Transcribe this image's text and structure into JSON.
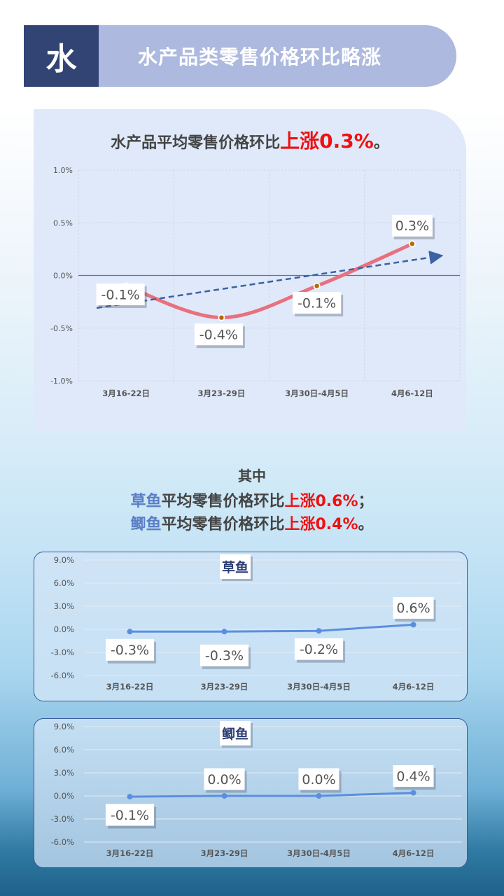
{
  "header": {
    "badge": "水",
    "title": "水产品类零售价格环比略涨"
  },
  "main_chart": {
    "title_prefix": "水产品平均零售价格环比",
    "title_highlight": "上涨0.3%",
    "title_suffix": "。"
  },
  "summary": {
    "line1": "其中",
    "line2_fish": "草鱼",
    "line2_text": "平均零售价格环比",
    "line2_highlight": "上涨0.6%",
    "line2_end": "；",
    "line3_fish": "鲫鱼",
    "line3_text": "平均零售价格环比",
    "line3_highlight": "上涨0.4%",
    "line3_end": "。"
  },
  "colors": {
    "badge": "#314474",
    "header_bar": "#adb9de",
    "main_line": "#e8707f",
    "trend_line": "#3a62a4",
    "fish_line": "#5b8fde",
    "highlight_red": "#ee1111",
    "fish_name": "#5a7ec6"
  },
  "chart_data": [
    {
      "type": "line",
      "title": "水产品平均零售价格环比上涨0.3%。",
      "categories": [
        "3月16-22日",
        "3月23-29日",
        "3月30日-4月5日",
        "4月6-12日"
      ],
      "series": [
        {
          "name": "水产品",
          "values": [
            -0.1,
            -0.4,
            -0.1,
            0.3
          ]
        }
      ],
      "data_labels": [
        "-0.1%",
        "-0.4%",
        "-0.1%",
        "0.3%"
      ],
      "trendline": "linear dashed with arrow",
      "yticks": [
        "1.0%",
        "0.5%",
        "0.0%",
        "-0.5%",
        "-1.0%"
      ],
      "ylim": [
        -1.0,
        1.0
      ],
      "xlabel": "",
      "ylabel": "",
      "grid": true
    },
    {
      "type": "line",
      "title": "草鱼",
      "categories": [
        "3月16-22日",
        "3月23-29日",
        "3月30日-4月5日",
        "4月6-12日"
      ],
      "series": [
        {
          "name": "草鱼",
          "values": [
            -0.3,
            -0.3,
            -0.2,
            0.6
          ]
        }
      ],
      "data_labels": [
        "-0.3%",
        "-0.3%",
        "-0.2%",
        "0.6%"
      ],
      "yticks": [
        "9.0%",
        "6.0%",
        "3.0%",
        "0.0%",
        "-3.0%",
        "-6.0%"
      ],
      "ylim": [
        -6.0,
        9.0
      ],
      "grid": true
    },
    {
      "type": "line",
      "title": "鲫鱼",
      "categories": [
        "3月16-22日",
        "3月23-29日",
        "3月30日-4月5日",
        "4月6-12日"
      ],
      "series": [
        {
          "name": "鲫鱼",
          "values": [
            -0.1,
            0.0,
            0.0,
            0.4
          ]
        }
      ],
      "data_labels": [
        "-0.1%",
        "0.0%",
        "0.0%",
        "0.4%"
      ],
      "yticks": [
        "9.0%",
        "6.0%",
        "3.0%",
        "0.0%",
        "-3.0%",
        "-6.0%"
      ],
      "ylim": [
        -6.0,
        9.0
      ],
      "grid": true
    }
  ]
}
